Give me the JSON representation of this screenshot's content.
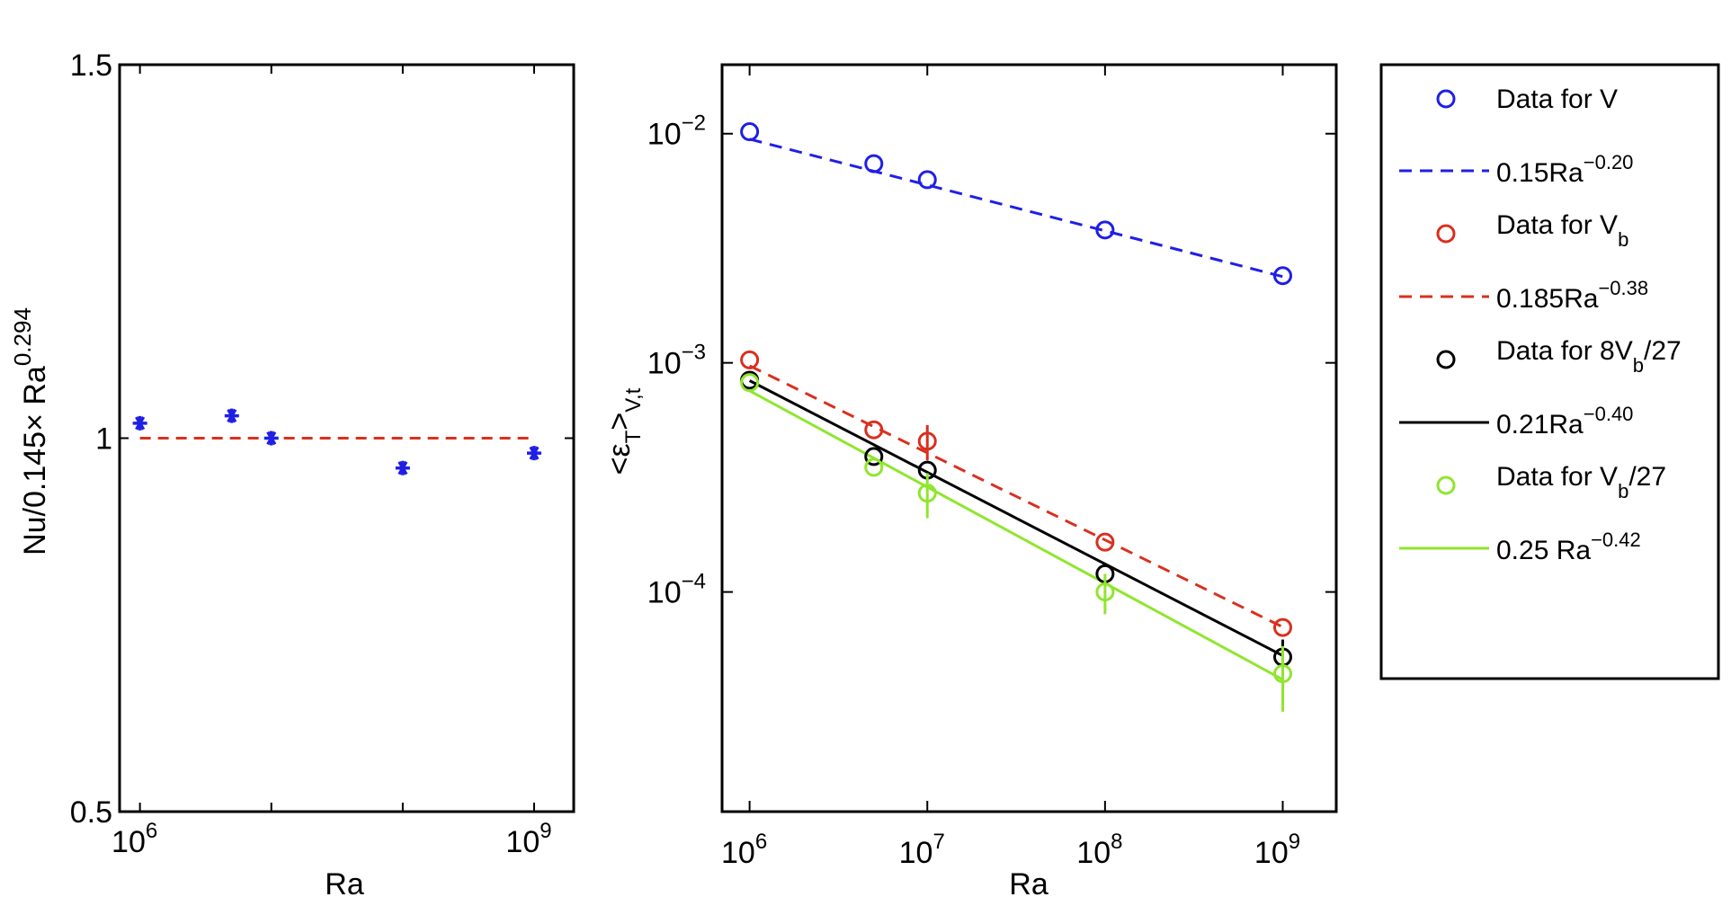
{
  "chart_data": [
    {
      "type": "scatter",
      "xscale": "log",
      "xlim": [
        700000,
        2000000000
      ],
      "ylim": [
        0.5,
        1.5
      ],
      "xlabel": "Ra",
      "ylabel": "Nu/0.145× Ra",
      "ylabel_sup": "0.294",
      "xticks": [
        {
          "base": "10",
          "exp": "6"
        },
        {
          "base": "10",
          "exp": "9"
        }
      ],
      "yticks": [
        "0.5",
        "1",
        "1.5"
      ],
      "ytick_values": [
        0.5,
        1.0,
        1.5
      ],
      "points": [
        {
          "x": 1000000,
          "y": 1.02
        },
        {
          "x": 5000000,
          "y": 1.03
        },
        {
          "x": 10000000,
          "y": 1.0
        },
        {
          "x": 100000000,
          "y": 0.96
        },
        {
          "x": 1000000000,
          "y": 0.98
        }
      ],
      "reference_line": {
        "y": 1.0,
        "color": "#d9301f"
      },
      "marker_color": "#1f1fe6"
    },
    {
      "type": "scatter",
      "xscale": "log",
      "yscale": "log",
      "xlim": [
        700000,
        2000000000
      ],
      "ylim": [
        1.1e-05,
        0.02
      ],
      "xlabel": "Ra",
      "ylabel": {
        "open": "<ε",
        "sub": "T",
        "close": ">",
        "sub2": "V,t"
      },
      "xticks": [
        {
          "base": "10",
          "exp": "6"
        },
        {
          "base": "10",
          "exp": "7"
        },
        {
          "base": "10",
          "exp": "8"
        },
        {
          "base": "10",
          "exp": "9"
        }
      ],
      "yticks": [
        {
          "base": "10",
          "exp": "−2"
        },
        {
          "base": "10",
          "exp": "−3"
        },
        {
          "base": "10",
          "exp": "−4"
        }
      ],
      "ytick_values": [
        0.01,
        0.001,
        0.0001
      ],
      "series": [
        {
          "name": "Data for V",
          "color": "#1f1fe6",
          "points": [
            {
              "x": 1000000,
              "y": 0.0102
            },
            {
              "x": 5000000,
              "y": 0.0074
            },
            {
              "x": 10000000,
              "y": 0.0063
            },
            {
              "x": 100000000,
              "y": 0.0038
            },
            {
              "x": 1000000000,
              "y": 0.0024
            }
          ],
          "err": [
            0,
            0,
            0,
            0,
            0
          ]
        },
        {
          "name": "Data for V_b",
          "color": "#d9301f",
          "points": [
            {
              "x": 1000000,
              "y": 0.00103
            },
            {
              "x": 5000000,
              "y": 0.00051
            },
            {
              "x": 10000000,
              "y": 0.000455
            },
            {
              "x": 100000000,
              "y": 0.000165
            },
            {
              "x": 1000000000,
              "y": 7e-05
            }
          ],
          "err": [
            0,
            0,
            8e-05,
            0,
            0
          ]
        },
        {
          "name": "Data for 8V_b/27",
          "color": "#000000",
          "points": [
            {
              "x": 1000000,
              "y": 0.00084
            },
            {
              "x": 5000000,
              "y": 0.00039
            },
            {
              "x": 10000000,
              "y": 0.00034
            },
            {
              "x": 100000000,
              "y": 0.00012
            },
            {
              "x": 1000000000,
              "y": 5.2e-05
            }
          ],
          "err": [
            0,
            0,
            0,
            0,
            1e-05
          ]
        },
        {
          "name": "Data for V_b/27",
          "color": "#8fe62e",
          "points": [
            {
              "x": 1000000,
              "y": 0.00082
            },
            {
              "x": 5000000,
              "y": 0.00035
            },
            {
              "x": 10000000,
              "y": 0.00027
            },
            {
              "x": 100000000,
              "y": 0.0001
            },
            {
              "x": 1000000000,
              "y": 4.4e-05
            }
          ],
          "err": [
            0,
            0,
            6e-05,
            2e-05,
            1.4e-05
          ]
        }
      ],
      "fits": [
        {
          "label": "0.15Ra",
          "exp": "−0.20",
          "a": 0.15,
          "b": -0.2,
          "color": "#1f1fe6",
          "dash": true
        },
        {
          "label": "0.185Ra",
          "exp": "−0.38",
          "a": 0.185,
          "b": -0.38,
          "color": "#d9301f",
          "dash": true
        },
        {
          "label": "0.21Ra",
          "exp": "−0.40",
          "a": 0.21,
          "b": -0.4,
          "color": "#000000",
          "dash": false
        },
        {
          "label": "0.25 Ra",
          "exp": "−0.42",
          "a": 0.25,
          "b": -0.42,
          "color": "#8fe62e",
          "dash": false
        }
      ]
    }
  ],
  "legend": {
    "placement": "right",
    "entries": [
      {
        "kind": "marker",
        "color": "#1f1fe6",
        "text": "Data for V",
        "sub": "",
        "tail": ""
      },
      {
        "kind": "dashed",
        "color": "#1f1fe6",
        "text": "0.15Ra",
        "sup": "−0.20"
      },
      {
        "kind": "marker",
        "color": "#d9301f",
        "text": "Data for V",
        "sub": "b",
        "tail": ""
      },
      {
        "kind": "dashed",
        "color": "#d9301f",
        "text": "0.185Ra",
        "sup": "−0.38"
      },
      {
        "kind": "marker",
        "color": "#000000",
        "text": "Data for 8V",
        "sub": "b",
        "tail": "/27"
      },
      {
        "kind": "solid",
        "color": "#000000",
        "text": "0.21Ra",
        "sup": "−0.40"
      },
      {
        "kind": "marker",
        "color": "#8fe62e",
        "text": "Data for V",
        "sub": "b",
        "tail": "/27"
      },
      {
        "kind": "solid",
        "color": "#8fe62e",
        "text": "0.25 Ra",
        "sup": "−0.42"
      }
    ]
  }
}
